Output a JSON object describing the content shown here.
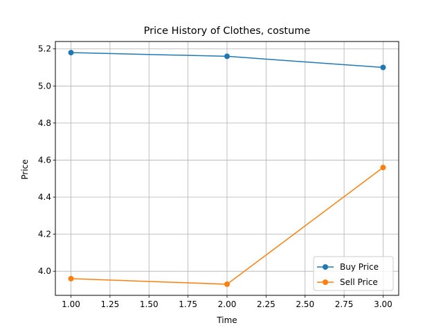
{
  "chart_data": {
    "type": "line",
    "title": "Price History of Clothes, costume",
    "xlabel": "Time",
    "ylabel": "Price",
    "x": [
      1.0,
      2.0,
      3.0
    ],
    "xlim": [
      0.9,
      3.1
    ],
    "ylim": [
      3.87,
      5.24
    ],
    "xticks": [
      1.0,
      1.25,
      1.5,
      1.75,
      2.0,
      2.25,
      2.5,
      2.75,
      3.0
    ],
    "xtick_labels": [
      "1.00",
      "1.25",
      "1.50",
      "1.75",
      "2.00",
      "2.25",
      "2.50",
      "2.75",
      "3.00"
    ],
    "yticks": [
      4.0,
      4.2,
      4.4,
      4.6,
      4.8,
      5.0,
      5.2
    ],
    "ytick_labels": [
      "4.0",
      "4.2",
      "4.4",
      "4.6",
      "4.8",
      "5.0",
      "5.2"
    ],
    "grid": true,
    "legend_position": "lower-right",
    "series": [
      {
        "name": "Buy Price",
        "color": "#1f77b4",
        "marker": "circle",
        "values": [
          5.18,
          5.16,
          5.1
        ]
      },
      {
        "name": "Sell Price",
        "color": "#ff7f0e",
        "marker": "circle",
        "values": [
          3.96,
          3.93,
          4.56
        ]
      }
    ]
  }
}
